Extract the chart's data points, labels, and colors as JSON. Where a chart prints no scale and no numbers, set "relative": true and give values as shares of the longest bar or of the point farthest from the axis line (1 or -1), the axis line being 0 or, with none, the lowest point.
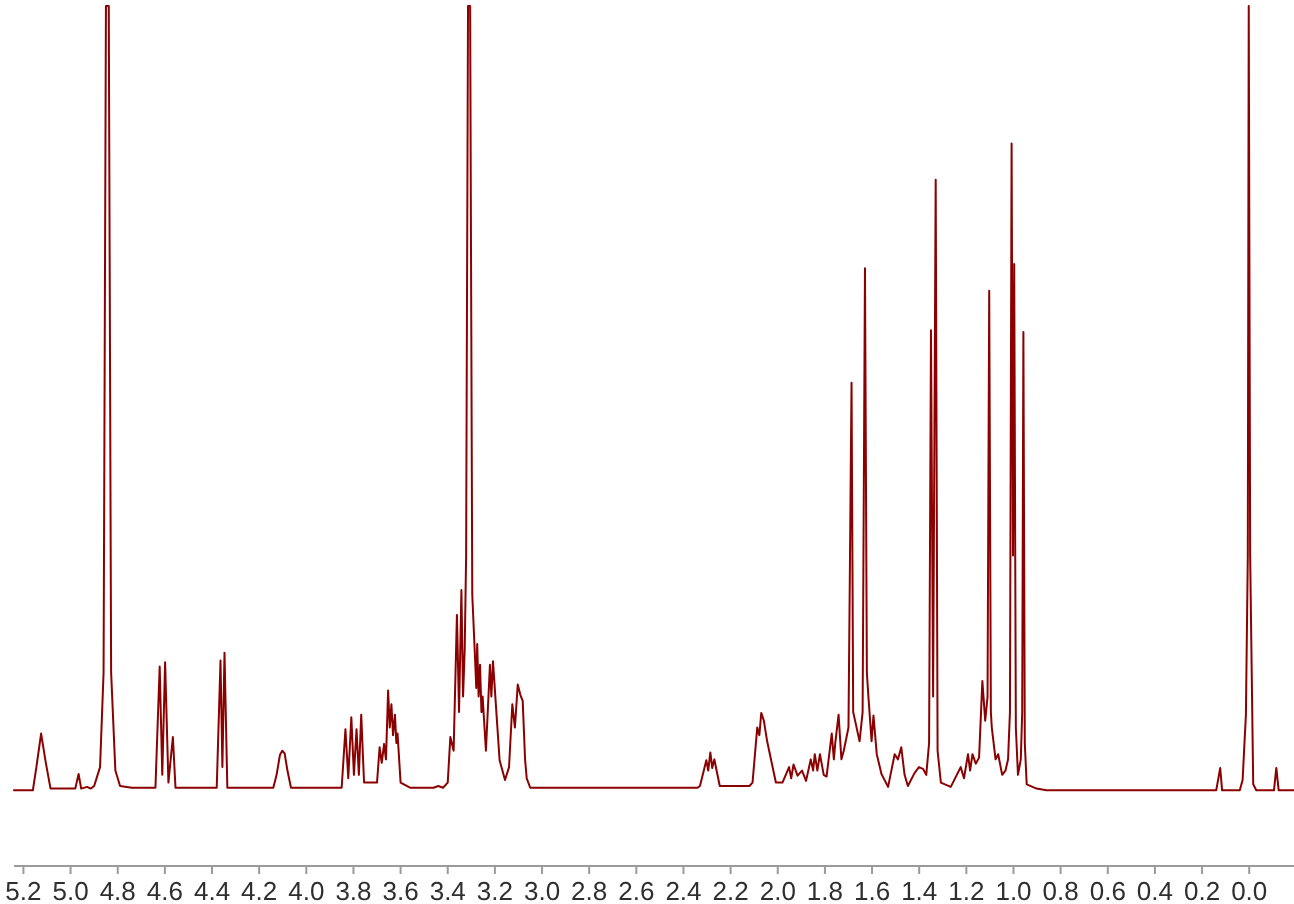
{
  "chart_data": {
    "type": "line",
    "relative": true,
    "xlim": [
      5.24,
      -0.19
    ],
    "xticks": [
      5.2,
      {
        "value": 5,
        "label": "5.0"
      },
      4.8,
      4.6,
      4.4,
      4.2,
      {
        "value": 4,
        "label": "4.0"
      },
      3.8,
      3.6,
      3.4,
      3.2,
      {
        "value": 3,
        "label": "3.0"
      },
      2.8,
      2.6,
      2.4,
      2.2,
      {
        "value": 2,
        "label": "2.0"
      },
      1.8,
      1.6,
      1.4,
      1.2,
      {
        "value": 1,
        "label": "1.0"
      },
      0.8,
      0.6,
      0.4,
      0.2,
      {
        "value": 0,
        "label": "0.0"
      }
    ],
    "x": [
      5.24,
      5.16,
      5.145,
      5.125,
      5.105,
      5.085,
      4.98,
      4.966,
      4.955,
      4.93,
      4.915,
      4.9,
      4.875,
      4.86,
      4.85,
      4.838,
      4.828,
      4.81,
      4.79,
      4.74,
      4.64,
      4.622,
      4.611,
      4.599,
      4.585,
      4.566,
      4.555,
      4.38,
      4.364,
      4.356,
      4.347,
      4.335,
      4.14,
      4.126,
      4.112,
      4.102,
      4.092,
      4.08,
      4.065,
      3.85,
      3.834,
      3.822,
      3.809,
      3.798,
      3.787,
      3.777,
      3.767,
      3.755,
      3.7,
      3.689,
      3.68,
      3.67,
      3.662,
      3.653,
      3.646,
      3.639,
      3.632,
      3.624,
      3.618,
      3.613,
      3.6,
      3.56,
      3.46,
      3.44,
      3.42,
      3.4,
      3.389,
      3.375,
      3.361,
      3.352,
      3.342,
      3.335,
      3.328,
      3.322,
      3.314,
      3.305,
      3.296,
      3.283,
      3.279,
      3.275,
      3.269,
      3.263,
      3.257,
      3.252,
      3.238,
      3.221,
      3.215,
      3.208,
      3.193,
      3.18,
      3.157,
      3.14,
      3.126,
      3.115,
      3.103,
      3.092,
      3.082,
      3.072,
      3.065,
      3.05,
      2.34,
      2.33,
      2.303,
      2.295,
      2.286,
      2.278,
      2.269,
      2.258,
      2.246,
      2.12,
      2.107,
      2.087,
      2.078,
      2.07,
      2.059,
      2.045,
      2.028,
      2.008,
      1.98,
      1.952,
      1.943,
      1.933,
      1.916,
      1.897,
      1.88,
      1.86,
      1.85,
      1.843,
      1.832,
      1.821,
      1.805,
      1.793,
      1.771,
      1.762,
      1.756,
      1.742,
      1.73,
      1.72,
      1.7,
      1.687,
      1.68,
      1.672,
      1.653,
      1.64,
      1.63,
      1.622,
      1.616,
      1.602,
      1.594,
      1.58,
      1.56,
      1.532,
      1.504,
      1.49,
      1.476,
      1.462,
      1.448,
      1.42,
      1.401,
      1.384,
      1.37,
      1.358,
      1.35,
      1.341,
      1.33,
      1.322,
      1.308,
      1.266,
      1.224,
      1.21,
      1.193,
      1.184,
      1.174,
      1.16,
      1.146,
      1.132,
      1.12,
      1.11,
      1.103,
      1.096,
      1.092,
      1.076,
      1.065,
      1.048,
      1.034,
      1.023,
      1.015,
      1.008,
      1.002,
      0.997,
      0.99,
      0.981,
      0.969,
      0.963,
      0.958,
      0.952,
      0.944,
      0.902,
      0.86,
      0.14,
      0.123,
      0.115,
      0.04,
      0.028,
      0.014,
      0.006,
      0.002,
      -0.004,
      -0.017,
      -0.03,
      -0.105,
      -0.115,
      -0.125,
      -0.19
    ],
    "series": [
      {
        "color": "#8b0000",
        "values": [
          0.088,
          0.088,
          0.115,
          0.154,
          0.12,
          0.09,
          0.09,
          0.107,
          0.09,
          0.092,
          0.09,
          0.093,
          0.115,
          0.225,
          1,
          1,
          0.225,
          0.111,
          0.093,
          0.091,
          0.091,
          0.232,
          0.106,
          0.237,
          0.097,
          0.15,
          0.091,
          0.091,
          0.239,
          0.115,
          0.248,
          0.091,
          0.091,
          0.106,
          0.129,
          0.134,
          0.131,
          0.111,
          0.091,
          0.091,
          0.159,
          0.102,
          0.173,
          0.106,
          0.159,
          0.106,
          0.176,
          0.097,
          0.097,
          0.138,
          0.12,
          0.142,
          0.124,
          0.204,
          0.161,
          0.188,
          0.152,
          0.176,
          0.143,
          0.154,
          0.097,
          0.091,
          0.091,
          0.093,
          0.091,
          0.097,
          0.15,
          0.134,
          0.292,
          0.179,
          0.321,
          0.197,
          0.252,
          0.361,
          1,
          1,
          0.316,
          0.234,
          0.207,
          0.258,
          0.197,
          0.234,
          0.179,
          0.197,
          0.134,
          0.234,
          0.197,
          0.238,
          0.176,
          0.123,
          0.1,
          0.115,
          0.188,
          0.161,
          0.211,
          0.199,
          0.192,
          0.124,
          0.102,
          0.091,
          0.091,
          0.093,
          0.123,
          0.111,
          0.132,
          0.114,
          0.124,
          0.109,
          0.093,
          0.093,
          0.097,
          0.161,
          0.152,
          0.178,
          0.169,
          0.145,
          0.123,
          0.097,
          0.097,
          0.115,
          0.102,
          0.118,
          0.105,
          0.111,
          0.099,
          0.124,
          0.111,
          0.13,
          0.111,
          0.13,
          0.106,
          0.104,
          0.154,
          0.124,
          0.143,
          0.176,
          0.124,
          0.134,
          0.161,
          0.562,
          0.179,
          0.169,
          0.145,
          0.179,
          0.695,
          0.225,
          0.199,
          0.145,
          0.175,
          0.13,
          0.107,
          0.092,
          0.13,
          0.124,
          0.138,
          0.106,
          0.093,
          0.108,
          0.115,
          0.113,
          0.106,
          0.143,
          0.623,
          0.197,
          0.798,
          0.134,
          0.097,
          0.092,
          0.115,
          0.102,
          0.13,
          0.111,
          0.13,
          0.119,
          0.126,
          0.215,
          0.169,
          0.197,
          0.669,
          0.179,
          0.161,
          0.124,
          0.13,
          0.106,
          0.111,
          0.124,
          0.179,
          0.84,
          0.361,
          0.7,
          0.161,
          0.106,
          0.124,
          0.179,
          0.621,
          0.143,
          0.095,
          0.09,
          0.088,
          0.088,
          0.114,
          0.088,
          0.088,
          0.1,
          0.176,
          0.361,
          1,
          0.361,
          0.095,
          0.088,
          0.088,
          0.114,
          0.088,
          0.088
        ]
      }
    ]
  }
}
